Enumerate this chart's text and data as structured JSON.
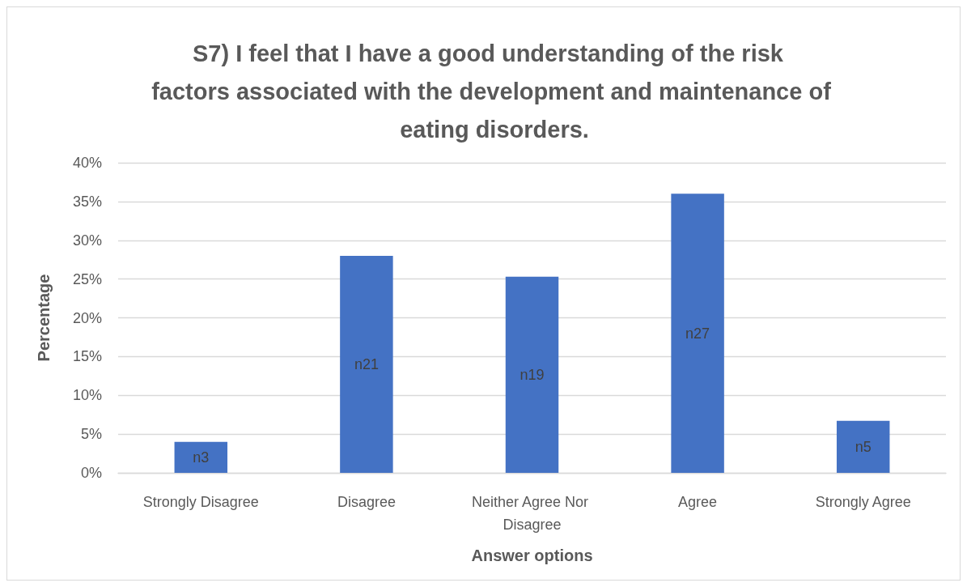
{
  "chart_data": {
    "type": "bar",
    "title": "S7) I feel that I have a good understanding of the risk factors associated with the development and maintenance of eating disorders.",
    "xlabel": "Answer options",
    "ylabel": "Percentage",
    "categories": [
      "Strongly Disagree",
      "Disagree",
      "Neither Agree Nor Disagree",
      "Agree",
      "Strongly Agree"
    ],
    "values": [
      4,
      28,
      25.3,
      36,
      6.7
    ],
    "value_labels": [
      "n3",
      "n21",
      "n19",
      "n27",
      "n5"
    ],
    "color": "#4472c4",
    "ylim": [
      0,
      40
    ],
    "yticks": [
      {
        "value": 0,
        "label": "0%"
      },
      {
        "value": 5,
        "label": "5%"
      },
      {
        "value": 10,
        "label": "10%"
      },
      {
        "value": 15,
        "label": "15%"
      },
      {
        "value": 20,
        "label": "20%"
      },
      {
        "value": 25,
        "label": "25%"
      },
      {
        "value": 30,
        "label": "30%"
      },
      {
        "value": 35,
        "label": "35%"
      },
      {
        "value": 40,
        "label": "40%"
      }
    ],
    "grid": "y"
  }
}
